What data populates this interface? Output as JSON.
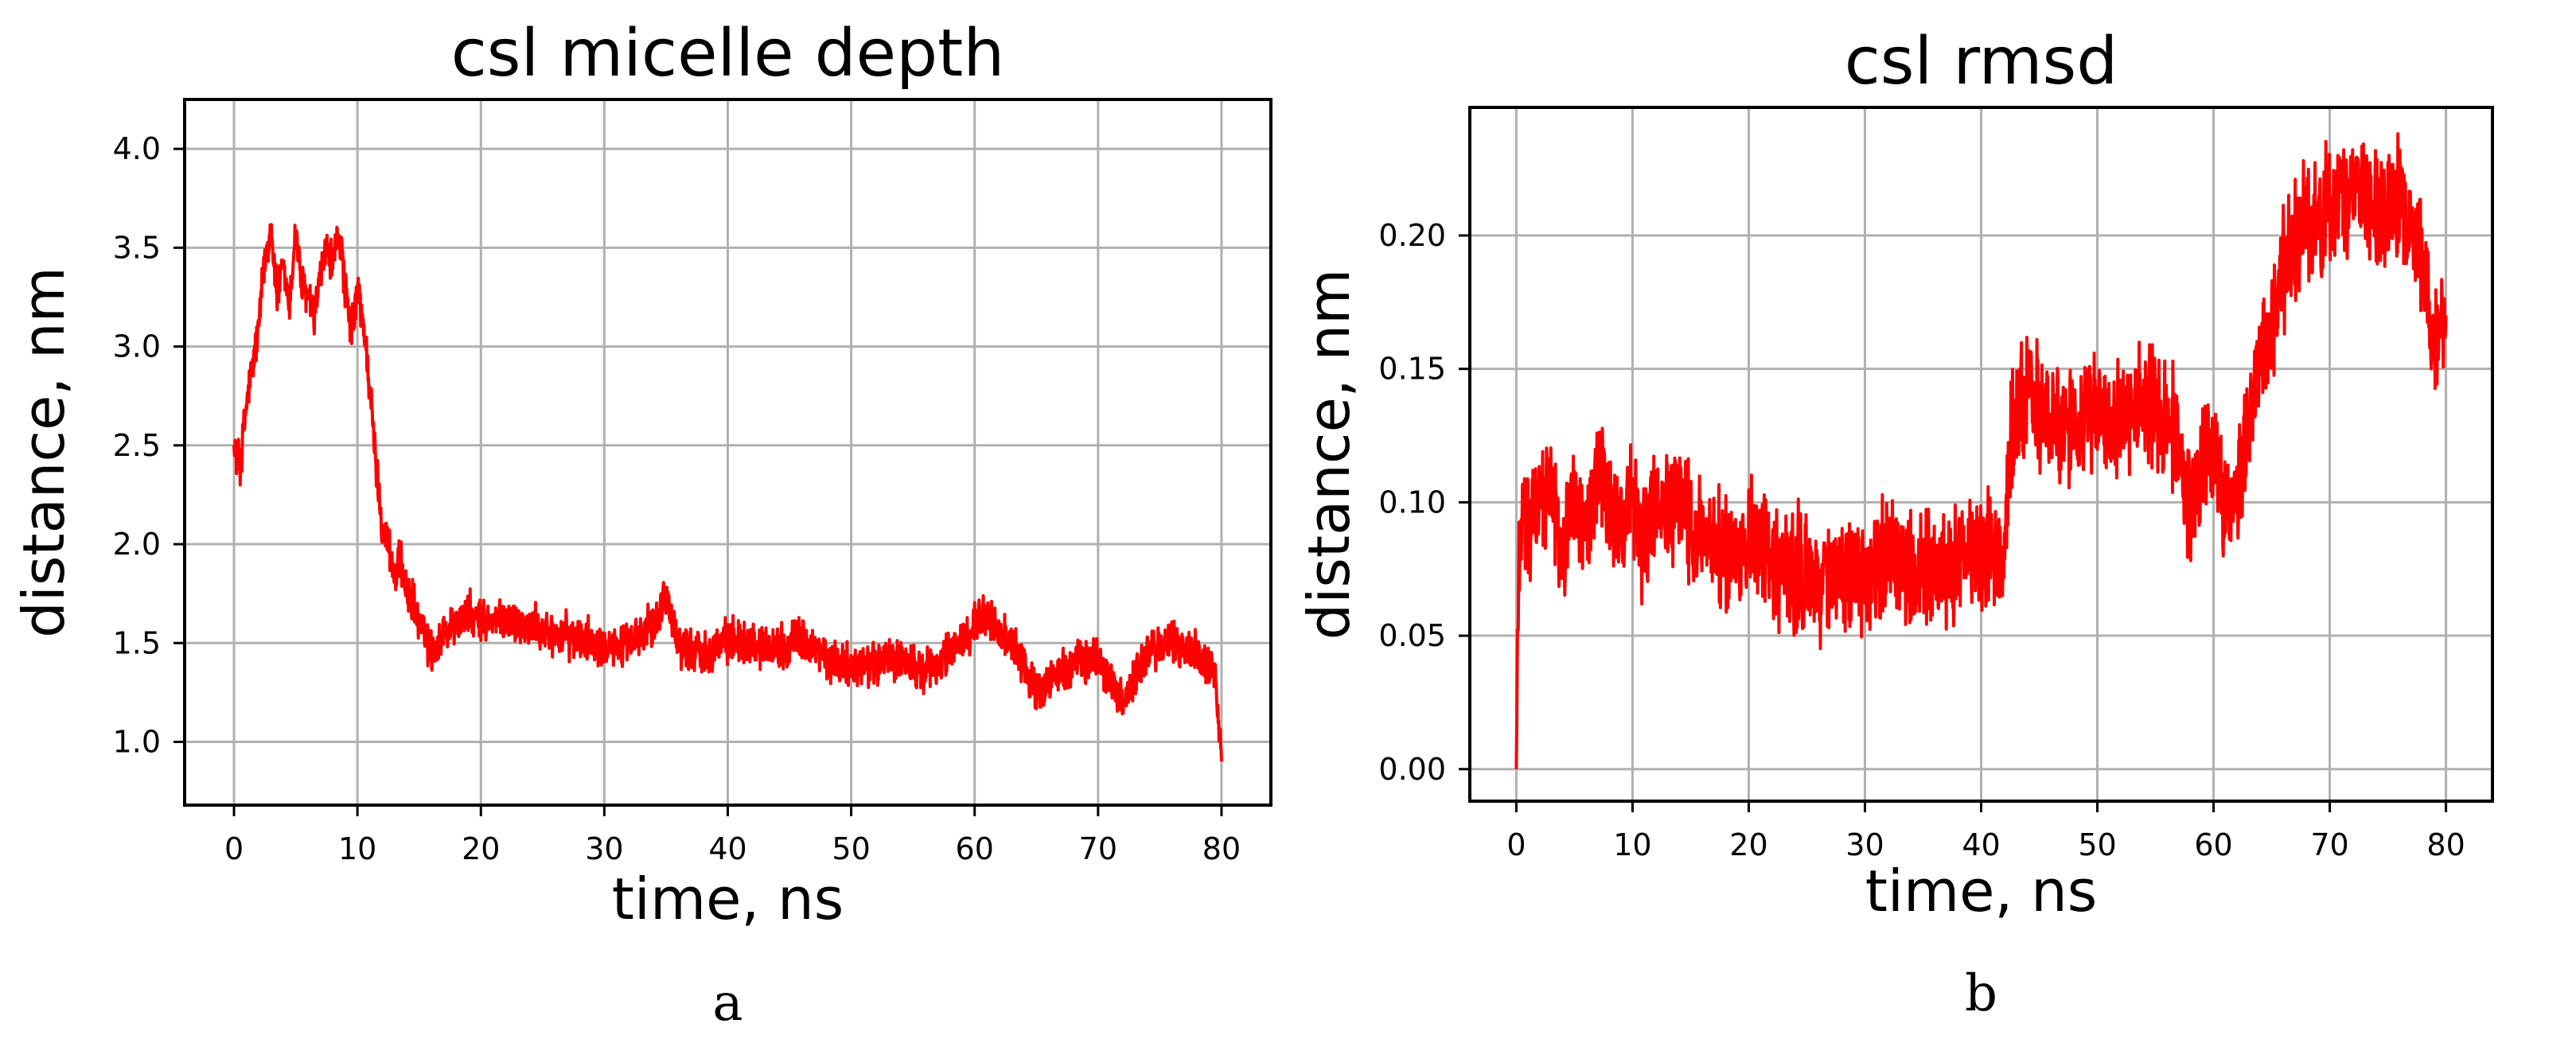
{
  "chart_data": [
    {
      "type": "line",
      "title": "csl micelle depth",
      "xlabel": "time, ns",
      "ylabel": "distance, nm",
      "caption": "a",
      "xlim": [
        -4,
        84
      ],
      "ylim": [
        0.68,
        4.25
      ],
      "xticks": [
        0,
        10,
        20,
        30,
        40,
        50,
        60,
        70,
        80
      ],
      "xtick_labels": [
        "0",
        "10",
        "20",
        "30",
        "40",
        "50",
        "60",
        "70",
        "80"
      ],
      "yticks": [
        1.0,
        1.5,
        2.0,
        2.5,
        3.0,
        3.5,
        4.0
      ],
      "ytick_labels": [
        "1.0",
        "1.5",
        "2.0",
        "2.5",
        "3.0",
        "3.5",
        "4.0"
      ],
      "grid": true,
      "series_color": "#ff0000",
      "series": [
        {
          "x": [
            0,
            0.5,
            1,
            1.5,
            2,
            2.5,
            3,
            3.5,
            4,
            4.5,
            5,
            5.5,
            6,
            6.5,
            7,
            7.5,
            8,
            8.5,
            9,
            9.5,
            10,
            10.5,
            11,
            11.5,
            12,
            12.5,
            13,
            13.5,
            14,
            14.5,
            15,
            16,
            17,
            18,
            19,
            20,
            22,
            24,
            26,
            28,
            30,
            32,
            34,
            35,
            36,
            38,
            40,
            42,
            44,
            46,
            48,
            50,
            52,
            54,
            56,
            58,
            60,
            61,
            62,
            64,
            65,
            66,
            68,
            70,
            71,
            72,
            74,
            76,
            78,
            79,
            79.5,
            80
          ],
          "y": [
            2.5,
            2.4,
            2.7,
            2.9,
            3.1,
            3.45,
            3.6,
            3.25,
            3.4,
            3.2,
            3.6,
            3.3,
            3.25,
            3.15,
            3.35,
            3.5,
            3.4,
            3.6,
            3.3,
            3.05,
            3.3,
            3.1,
            2.8,
            2.4,
            2.1,
            2.0,
            1.85,
            1.9,
            1.75,
            1.7,
            1.6,
            1.45,
            1.55,
            1.6,
            1.65,
            1.6,
            1.62,
            1.58,
            1.55,
            1.52,
            1.5,
            1.48,
            1.6,
            1.75,
            1.5,
            1.45,
            1.52,
            1.5,
            1.48,
            1.52,
            1.42,
            1.38,
            1.4,
            1.42,
            1.35,
            1.45,
            1.6,
            1.65,
            1.55,
            1.4,
            1.25,
            1.3,
            1.4,
            1.42,
            1.3,
            1.2,
            1.45,
            1.5,
            1.45,
            1.4,
            1.35,
            0.9
          ]
        }
      ]
    },
    {
      "type": "line",
      "title": "csl rmsd",
      "xlabel": "time, ns",
      "ylabel": "distance, nm",
      "caption": "b",
      "xlim": [
        -4,
        84
      ],
      "ylim": [
        -0.012,
        0.248
      ],
      "xticks": [
        0,
        10,
        20,
        30,
        40,
        50,
        60,
        70,
        80
      ],
      "xtick_labels": [
        "0",
        "10",
        "20",
        "30",
        "40",
        "50",
        "60",
        "70",
        "80"
      ],
      "yticks": [
        0.0,
        0.05,
        0.1,
        0.15,
        0.2
      ],
      "ytick_labels": [
        "0.00",
        "0.05",
        "0.10",
        "0.15",
        "0.20"
      ],
      "grid": true,
      "series_color": "#ff0000",
      "series": [
        {
          "x": [
            0,
            0.2,
            0.5,
            1,
            2,
            3,
            4,
            5,
            6,
            7,
            8,
            9,
            10,
            11,
            12,
            13,
            14,
            15,
            16,
            18,
            20,
            22,
            24,
            26,
            28,
            30,
            32,
            34,
            36,
            38,
            40,
            42,
            42.5,
            43,
            44,
            46,
            48,
            50,
            52,
            54,
            56,
            57,
            58,
            59,
            60,
            61,
            62,
            63,
            64,
            65,
            66,
            67,
            68,
            70,
            72,
            74,
            76,
            77,
            78,
            79,
            80
          ],
          "y": [
            0.0,
            0.08,
            0.1,
            0.09,
            0.1,
            0.11,
            0.08,
            0.1,
            0.09,
            0.11,
            0.1,
            0.09,
            0.1,
            0.085,
            0.1,
            0.095,
            0.105,
            0.09,
            0.085,
            0.08,
            0.085,
            0.078,
            0.075,
            0.07,
            0.072,
            0.075,
            0.08,
            0.075,
            0.072,
            0.078,
            0.08,
            0.08,
            0.125,
            0.13,
            0.14,
            0.13,
            0.125,
            0.135,
            0.13,
            0.14,
            0.13,
            0.125,
            0.095,
            0.11,
            0.12,
            0.095,
            0.1,
            0.13,
            0.15,
            0.17,
            0.185,
            0.2,
            0.205,
            0.21,
            0.215,
            0.21,
            0.215,
            0.2,
            0.195,
            0.16,
            0.17
          ]
        }
      ]
    }
  ]
}
